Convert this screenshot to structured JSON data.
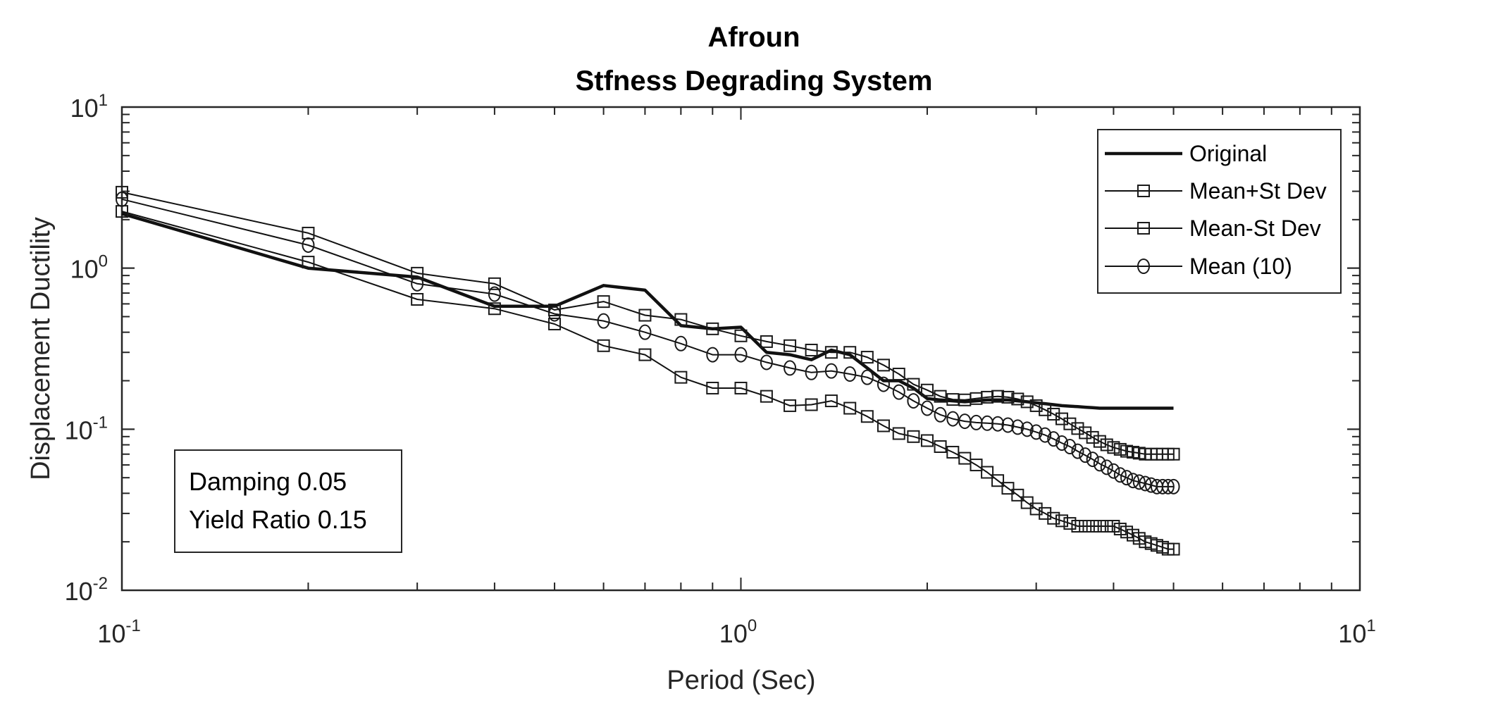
{
  "chart_data": {
    "type": "line",
    "title": "Afroun",
    "subtitle": "Stfness Degrading System",
    "xlabel": "Period (Sec)",
    "ylabel": "Displacement Ductility",
    "xscale": "log",
    "yscale": "log",
    "xlim": [
      0.1,
      10
    ],
    "ylim": [
      0.01,
      10
    ],
    "x_ticks": [
      {
        "base": "10",
        "exp": "-1",
        "value": 0.1
      },
      {
        "base": "10",
        "exp": "0",
        "value": 1
      },
      {
        "base": "10",
        "exp": "1",
        "value": 10
      }
    ],
    "y_ticks": [
      {
        "base": "10",
        "exp": "-2",
        "value": 0.01
      },
      {
        "base": "10",
        "exp": "-1",
        "value": 0.1
      },
      {
        "base": "10",
        "exp": "0",
        "value": 1
      },
      {
        "base": "10",
        "exp": "1",
        "value": 10
      }
    ],
    "grid": false,
    "legend_position": "top-right",
    "annotation": [
      "Damping 0.05",
      "Yield Ratio 0.15"
    ],
    "x": [
      0.1,
      0.2,
      0.3,
      0.4,
      0.5,
      0.6,
      0.7,
      0.8,
      0.9,
      1.0,
      1.1,
      1.2,
      1.3,
      1.4,
      1.5,
      1.6,
      1.7,
      1.8,
      1.9,
      2.0,
      2.1,
      2.2,
      2.3,
      2.4,
      2.5,
      2.6,
      2.7,
      2.8,
      2.9,
      3.0,
      3.1,
      3.2,
      3.3,
      3.4,
      3.5,
      3.6,
      3.7,
      3.8,
      3.9,
      4.0,
      4.1,
      4.2,
      4.3,
      4.4,
      4.5,
      4.6,
      4.7,
      4.8,
      4.9,
      5.0
    ],
    "series": [
      {
        "name": "Original",
        "marker": "none",
        "line": "thick",
        "values": [
          2.18,
          1.0,
          0.88,
          0.58,
          0.58,
          0.78,
          0.73,
          0.44,
          0.42,
          0.43,
          0.3,
          0.29,
          0.27,
          0.31,
          0.29,
          0.24,
          0.2,
          0.2,
          0.18,
          0.155,
          0.152,
          0.15,
          0.148,
          0.15,
          0.152,
          0.152,
          0.152,
          0.15,
          0.148,
          0.146,
          0.144,
          0.142,
          0.14,
          0.139,
          0.138,
          0.137,
          0.136,
          0.135,
          0.135,
          0.135,
          0.135,
          0.135,
          0.135,
          0.135,
          0.135,
          0.135,
          0.135,
          0.135,
          0.135,
          0.135
        ]
      },
      {
        "name": "Mean+St Dev",
        "marker": "square",
        "line": "thin",
        "values": [
          2.96,
          1.65,
          0.93,
          0.8,
          0.55,
          0.62,
          0.51,
          0.48,
          0.42,
          0.38,
          0.35,
          0.33,
          0.31,
          0.3,
          0.3,
          0.28,
          0.25,
          0.22,
          0.19,
          0.175,
          0.16,
          0.153,
          0.152,
          0.155,
          0.158,
          0.16,
          0.158,
          0.154,
          0.148,
          0.14,
          0.132,
          0.124,
          0.116,
          0.108,
          0.101,
          0.095,
          0.089,
          0.084,
          0.08,
          0.077,
          0.075,
          0.073,
          0.072,
          0.071,
          0.07,
          0.07,
          0.07,
          0.07,
          0.07,
          0.07
        ]
      },
      {
        "name": "Mean-St Dev",
        "marker": "square",
        "line": "thin",
        "values": [
          2.25,
          1.09,
          0.64,
          0.56,
          0.45,
          0.33,
          0.29,
          0.21,
          0.18,
          0.18,
          0.16,
          0.14,
          0.142,
          0.15,
          0.135,
          0.12,
          0.105,
          0.094,
          0.09,
          0.085,
          0.078,
          0.072,
          0.066,
          0.06,
          0.054,
          0.048,
          0.043,
          0.039,
          0.035,
          0.032,
          0.03,
          0.028,
          0.027,
          0.026,
          0.025,
          0.025,
          0.025,
          0.025,
          0.025,
          0.025,
          0.024,
          0.023,
          0.022,
          0.021,
          0.02,
          0.0195,
          0.019,
          0.0185,
          0.018,
          0.018
        ]
      },
      {
        "name": "Mean (10)",
        "marker": "circle",
        "line": "thin",
        "values": [
          2.68,
          1.39,
          0.8,
          0.69,
          0.52,
          0.47,
          0.4,
          0.34,
          0.29,
          0.29,
          0.26,
          0.24,
          0.225,
          0.23,
          0.22,
          0.21,
          0.19,
          0.17,
          0.15,
          0.135,
          0.123,
          0.116,
          0.112,
          0.11,
          0.109,
          0.108,
          0.106,
          0.103,
          0.1,
          0.096,
          0.092,
          0.087,
          0.082,
          0.078,
          0.073,
          0.069,
          0.065,
          0.061,
          0.058,
          0.055,
          0.052,
          0.05,
          0.048,
          0.047,
          0.046,
          0.045,
          0.044,
          0.044,
          0.044,
          0.044
        ]
      }
    ]
  }
}
